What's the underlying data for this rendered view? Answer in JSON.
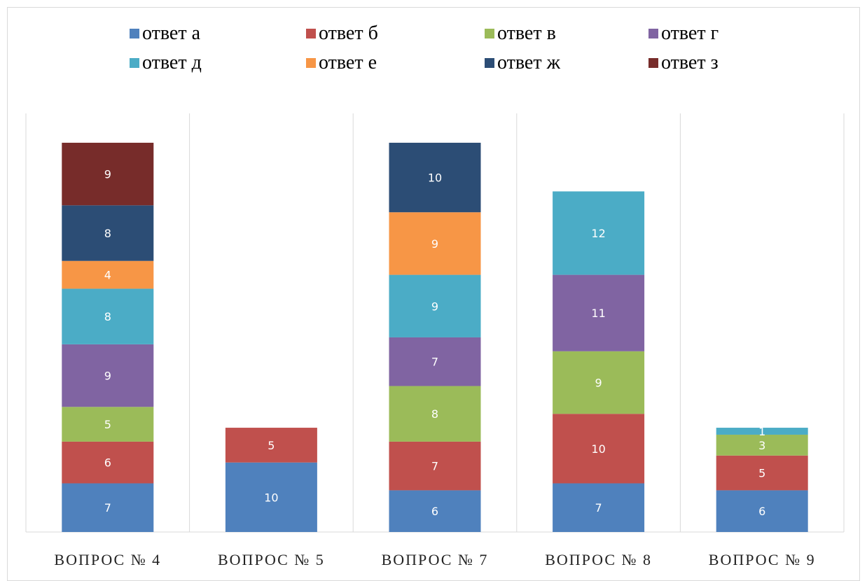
{
  "chart_data": {
    "type": "bar",
    "stacked": true,
    "categories": [
      "ВОПРОС № 4",
      "ВОПРОС № 5",
      "ВОПРОС № 7",
      "ВОПРОС № 8",
      "ВОПРОС № 9"
    ],
    "series": [
      {
        "name": "ответ а",
        "color": "#4f81bd",
        "values": [
          7,
          10,
          6,
          7,
          6
        ]
      },
      {
        "name": "ответ б",
        "color": "#c0504d",
        "values": [
          6,
          5,
          7,
          10,
          5
        ]
      },
      {
        "name": "ответ в",
        "color": "#9bbb59",
        "values": [
          5,
          null,
          8,
          9,
          3
        ]
      },
      {
        "name": "ответ г",
        "color": "#8064a2",
        "values": [
          9,
          null,
          7,
          11,
          null
        ]
      },
      {
        "name": "ответ д",
        "color": "#4bacc6",
        "values": [
          8,
          null,
          9,
          12,
          1
        ]
      },
      {
        "name": "ответ е",
        "color": "#f79646",
        "values": [
          4,
          null,
          9,
          null,
          null
        ]
      },
      {
        "name": "ответ ж",
        "color": "#2c4d75",
        "values": [
          8,
          null,
          10,
          null,
          null
        ]
      },
      {
        "name": "ответ з",
        "color": "#772c2a",
        "values": [
          9,
          null,
          null,
          null,
          null
        ]
      }
    ],
    "legend_position": "top",
    "grid": false,
    "category_separators": true,
    "title": "",
    "xlabel": "",
    "ylabel": ""
  }
}
